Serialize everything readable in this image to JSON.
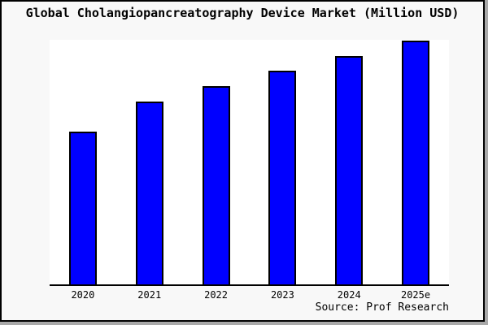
{
  "chart_data": {
    "type": "bar",
    "title": "Global Cholangiopancreatography Device Market (Million USD)",
    "categories": [
      "2020",
      "2021",
      "2022",
      "2023",
      "2024",
      "2025e"
    ],
    "values": [
      62.5,
      74.8,
      81.1,
      87.4,
      93.4,
      99.7
    ],
    "values_note": "No y-axis ticks or value labels are shown in the chart; values are estimated bar heights as percent of plot height (steadily growing market, 2025e tallest).",
    "xlabel": "",
    "ylabel": "",
    "ylim": [
      0,
      100
    ],
    "grid": false,
    "legend": false,
    "source": "Source: Prof Research",
    "colors": {
      "bar_fill": "#0000ff",
      "bar_border": "#000000",
      "axis": "#000000",
      "plot_background": "#ffffff",
      "panel_background": "#f8f8f8",
      "text": "#000000",
      "shadow": "#a9a9a9"
    }
  }
}
